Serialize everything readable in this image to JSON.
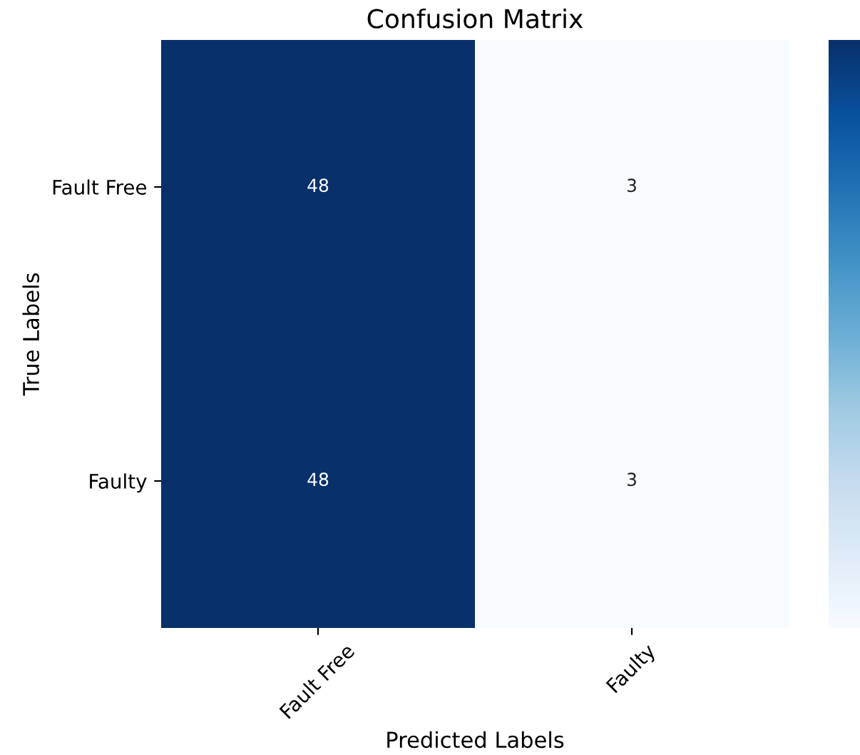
{
  "chart_data": {
    "type": "heatmap",
    "title": "Confusion Matrix",
    "xlabel": "Predicted Labels",
    "ylabel": "True Labels",
    "categories": [
      "Fault Free",
      "Faulty"
    ],
    "y_categories": [
      "Fault Free",
      "Faulty"
    ],
    "cells": [
      [
        48,
        3
      ],
      [
        48,
        3
      ]
    ],
    "data_labels": true
  }
}
